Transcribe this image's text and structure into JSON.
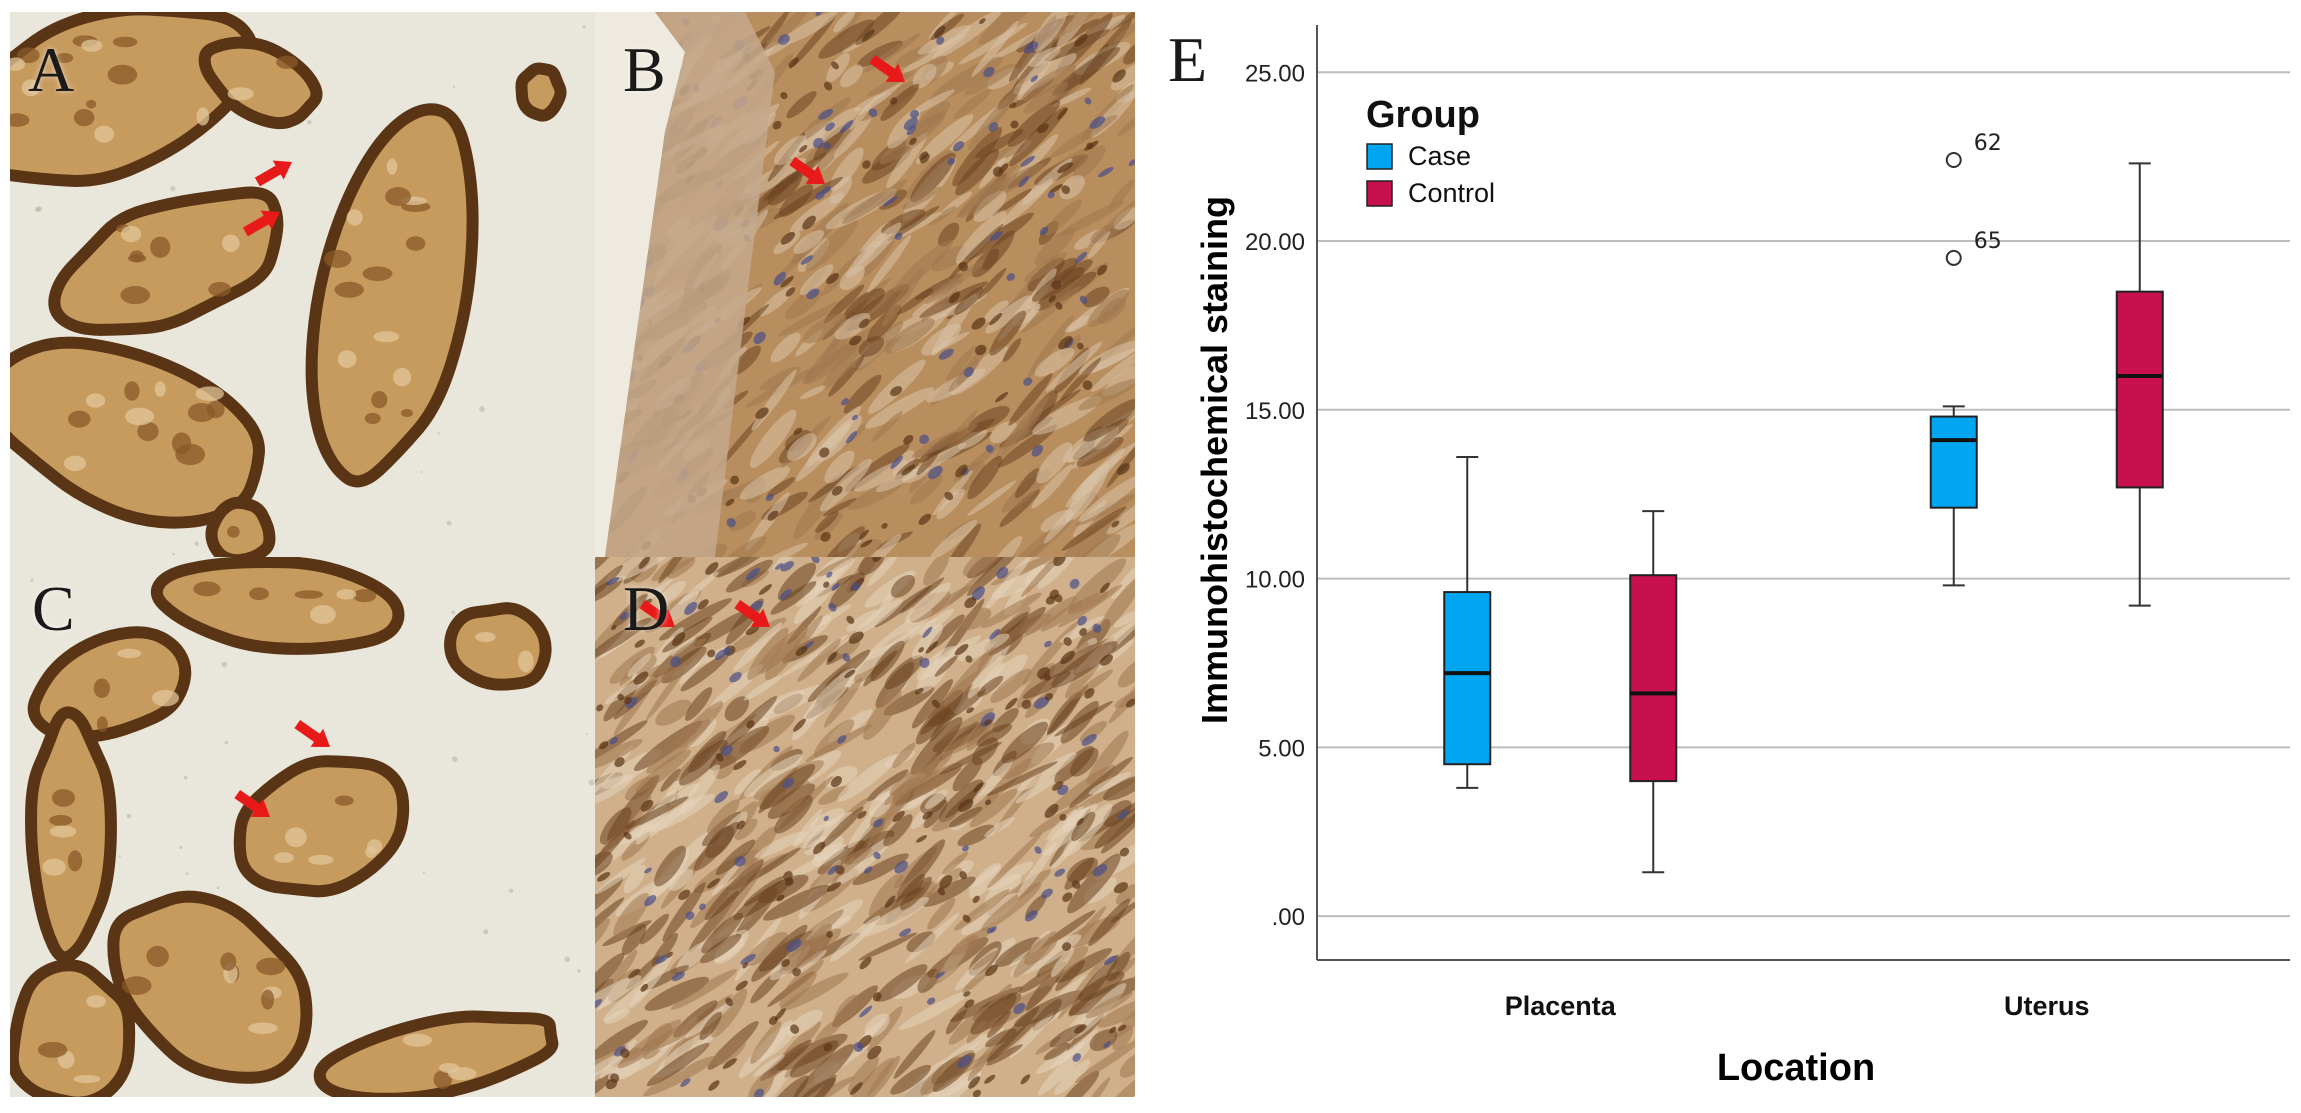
{
  "panels": [
    {
      "id": "A",
      "letter": "A",
      "tissue": "placenta"
    },
    {
      "id": "B",
      "letter": "B",
      "tissue": "uterus"
    },
    {
      "id": "C",
      "letter": "C",
      "tissue": "placenta"
    },
    {
      "id": "D",
      "letter": "D",
      "tissue": "uterus"
    }
  ],
  "panel_e_letter": "E",
  "colors": {
    "case": "#00A6F0",
    "control": "#C8104E",
    "arrow": "#E81919",
    "placenta_bg": "#E9E7DC",
    "villus_stroma": "#C79A5E",
    "villus_rim": "#5A3515",
    "uterus_bg": "#B98E5E",
    "uterus_light": "#D8C2A8"
  },
  "chart_data": {
    "type": "boxplot",
    "title": "",
    "xlabel": "Location",
    "ylabel": "Immunohistochemical staining",
    "categories": [
      "Placenta",
      "Uterus"
    ],
    "ylim": [
      -1.3,
      26.4
    ],
    "yticks": [
      0,
      5,
      10,
      15,
      20,
      25
    ],
    "ytick_labels": [
      ".00",
      "5.00",
      "10.00",
      "15.00",
      "20.00",
      "25.00"
    ],
    "grid": true,
    "legend": {
      "title": "Group",
      "position": "top-left"
    },
    "series": [
      {
        "name": "Case",
        "color": "#00A6F0",
        "boxes": [
          {
            "min": 3.8,
            "q1": 4.5,
            "median": 7.2,
            "q3": 9.6,
            "max": 13.6,
            "outliers": []
          },
          {
            "min": 9.8,
            "q1": 12.1,
            "median": 14.1,
            "q3": 14.8,
            "max": 15.1,
            "outliers": [
              {
                "value": 22.4,
                "label": "62"
              },
              {
                "value": 19.5,
                "label": "65"
              }
            ]
          }
        ]
      },
      {
        "name": "Control",
        "color": "#C8104E",
        "boxes": [
          {
            "min": 1.3,
            "q1": 4.0,
            "median": 6.6,
            "q3": 10.1,
            "max": 12.0,
            "outliers": []
          },
          {
            "min": 9.2,
            "q1": 12.7,
            "median": 16.0,
            "q3": 18.5,
            "max": 22.3,
            "outliers": []
          }
        ]
      }
    ]
  }
}
